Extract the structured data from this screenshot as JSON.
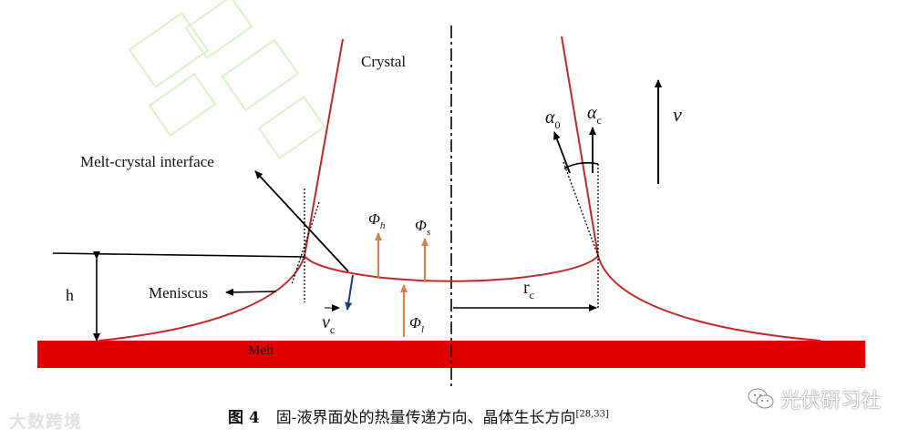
{
  "labels": {
    "crystal": "Crystal",
    "interface": "Melt-crystal interface",
    "meniscus": "Meniscus",
    "melt": "Melt",
    "h": "h",
    "vc_base": "v",
    "vc_sub": "c",
    "phi_h_base": "Φ",
    "phi_h_sub": "h",
    "phi_s_base": "Φ",
    "phi_s_sub": "s",
    "phi_l_base": "Φ",
    "phi_l_sub": "l",
    "rc_base": "r",
    "rc_sub": "c",
    "alpha0_base": "α",
    "alpha0_sub": "0",
    "alphac_base": "α",
    "alphac_sub": "c",
    "v": "v"
  },
  "caption": {
    "figure_no": "图 4",
    "text": "固-液界面处的热量传递方向、晶体生长方向",
    "ref": "[28,33]"
  },
  "watermarks": {
    "left": "大数跨境",
    "right": "光伏研习社"
  },
  "colors": {
    "crystal_line": "#c0282a",
    "melt_fill": "#e00000",
    "heat_arrow": "#d4814a",
    "velocity_arrow": "#1f3a7a",
    "black": "#000000"
  }
}
